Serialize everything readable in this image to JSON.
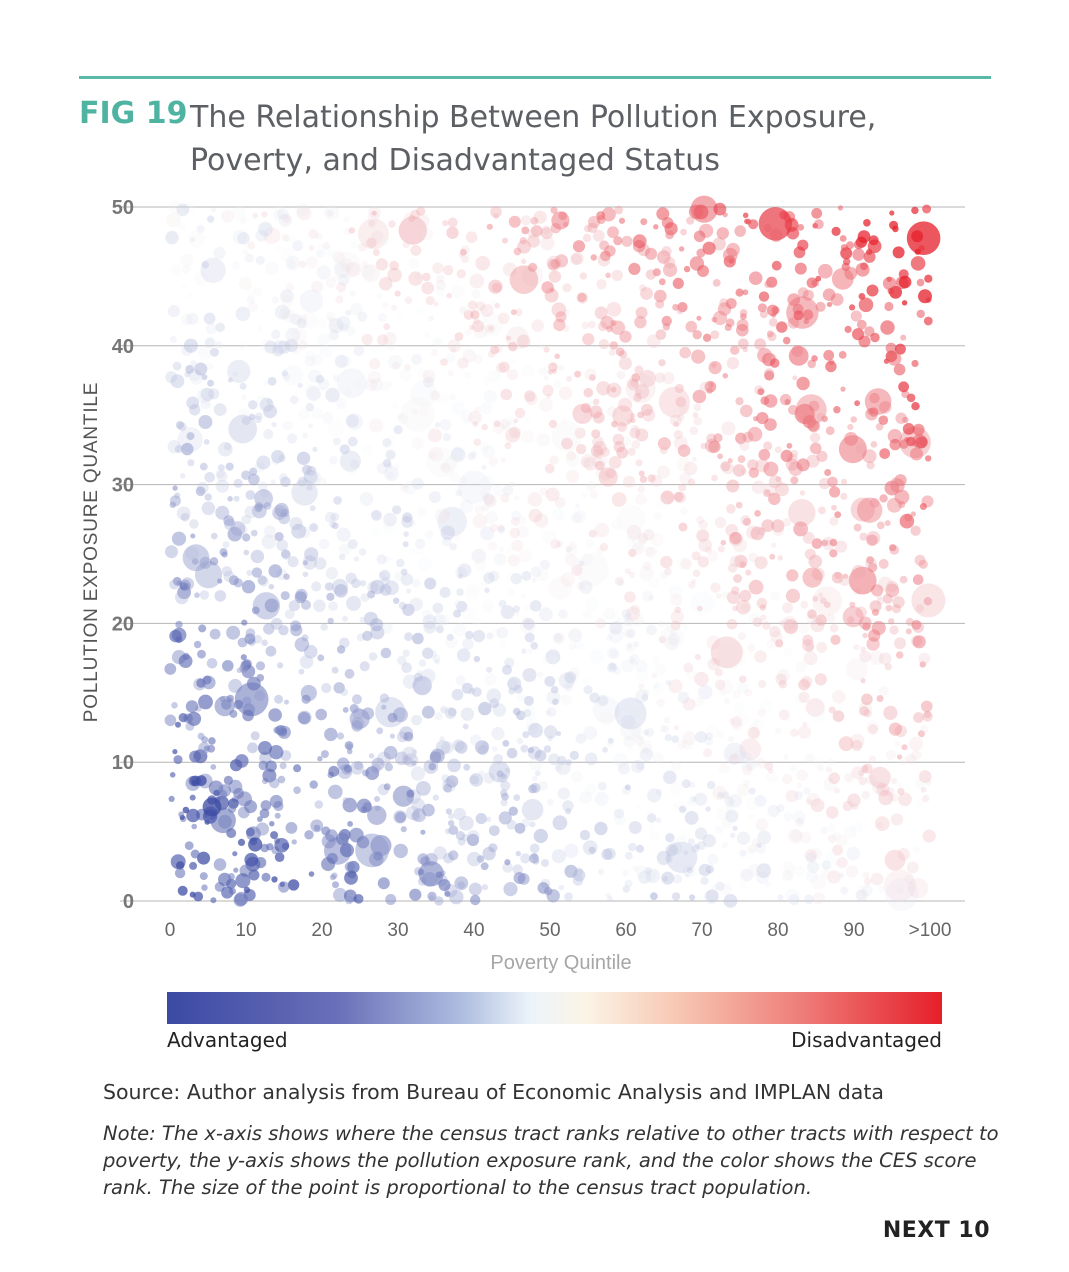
{
  "header": {
    "fig_label": "FIG 19",
    "title": "The Relationship Between Pollution Exposure, Poverty, and Disadvantaged Status"
  },
  "chart_data": {
    "type": "scatter",
    "title": "The Relationship Between Pollution Exposure, Poverty, and Disadvantaged Status",
    "xlabel": "Poverty Quintile",
    "ylabel": "POLLUTION EXPOSURE QUANTILE",
    "xlim": [
      0,
      100
    ],
    "ylim": [
      0,
      50
    ],
    "x_ticks": [
      "0",
      "10",
      "20",
      "30",
      "40",
      "50",
      "60",
      "70",
      "80",
      "90",
      ">100"
    ],
    "y_ticks": [
      "0",
      "10",
      "20",
      "30",
      "40",
      "50"
    ],
    "grid": "horizontal",
    "color_scale": {
      "low_label": "Advantaged",
      "high_label": "Disadvantaged",
      "low_color": "#3b4aa3",
      "mid_color": "#f3f6f9",
      "high_color": "#e61f2a"
    },
    "encoding": {
      "x": "poverty rank",
      "y": "pollution exposure rank",
      "color": "CES score rank",
      "size": "census tract population"
    },
    "point_count": 2600,
    "random_seed": 19
  },
  "source": "Source: Author analysis from Bureau of Economic Analysis and IMPLAN data",
  "note": "Note: The x-axis shows where the census tract ranks relative to other tracts with respect to poverty, the y-axis shows the pollution exposure rank, and the color shows the CES score rank. The size of the point is proportional to the census tract population.",
  "brand": "NEXT 10"
}
